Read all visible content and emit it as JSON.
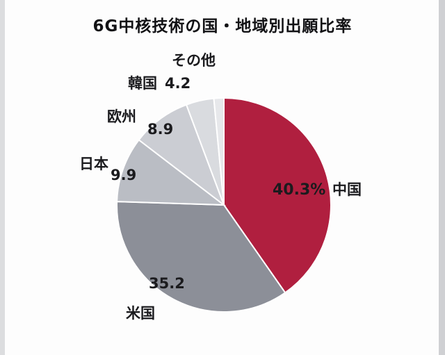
{
  "chart_data": {
    "type": "pie",
    "title": "6G中核技術の国・地域別出願比率",
    "unit": "%",
    "start_angle_deg": 0,
    "direction": "clockwise",
    "legend_position": "outside-labels",
    "slices": [
      {
        "name": "中国",
        "value": 40.3,
        "value_label": "40.3%",
        "color": "#b01f3f"
      },
      {
        "name": "米国",
        "value": 35.2,
        "value_label": "35.2",
        "color": "#8c8f98"
      },
      {
        "name": "日本",
        "value": 9.9,
        "value_label": "9.9",
        "color": "#babdc4"
      },
      {
        "name": "欧州",
        "value": 8.9,
        "value_label": "8.9",
        "color": "#cbcdd3"
      },
      {
        "name": "韓国",
        "value": 4.2,
        "value_label": "4.2",
        "color": "#d9dbdf"
      },
      {
        "name": "その他",
        "value": 1.5,
        "value_label": "",
        "color": "#e7e8eb"
      }
    ]
  }
}
